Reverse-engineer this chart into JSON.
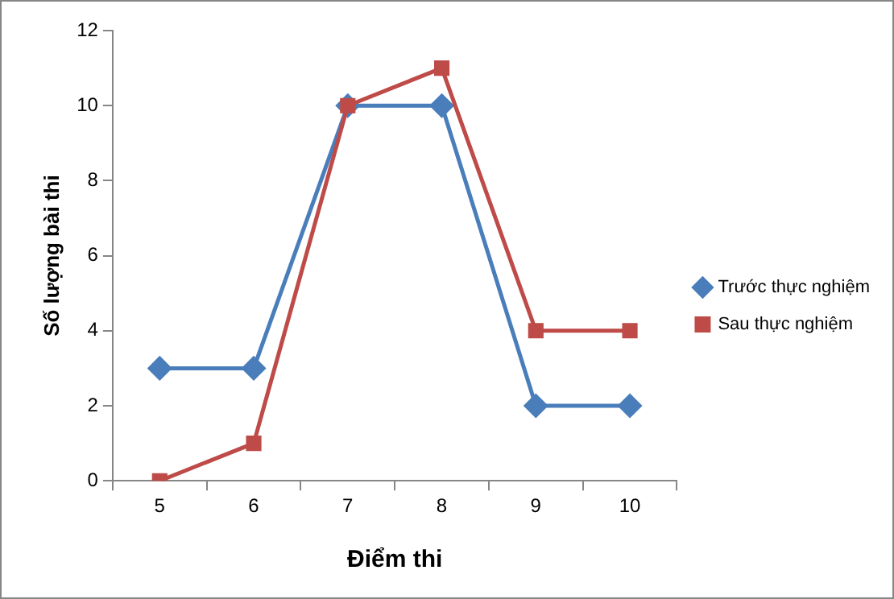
{
  "chart_data": {
    "type": "line",
    "xlabel": "Điểm thi",
    "ylabel": "Số lượng bài thi",
    "categories": [
      "5",
      "6",
      "7",
      "8",
      "9",
      "10"
    ],
    "series": [
      {
        "name": "Trước thực nghiệm",
        "color": "#4a7ebb",
        "marker": "diamond",
        "values": [
          3,
          3,
          10,
          10,
          2,
          2
        ]
      },
      {
        "name": "Sau thực nghiệm",
        "color": "#be4b48",
        "marker": "square",
        "values": [
          0,
          1,
          10,
          11,
          4,
          4
        ]
      }
    ],
    "ylim": [
      0,
      12
    ],
    "yticks": [
      0,
      2,
      4,
      6,
      8,
      10,
      12
    ],
    "grid": false,
    "legend": "right",
    "line_style": "solid"
  }
}
